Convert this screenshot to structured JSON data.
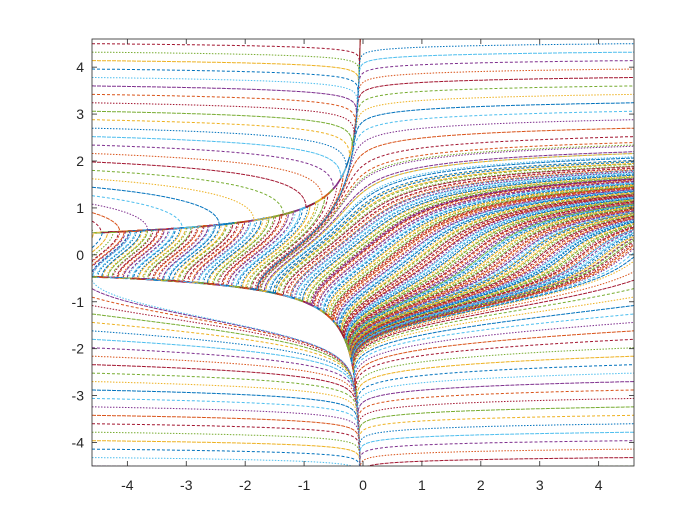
{
  "chart_data": {
    "type": "line",
    "title": "",
    "xlabel": "",
    "ylabel": "",
    "xlim": [
      -4.6,
      4.6
    ],
    "ylim": [
      -4.5,
      4.6
    ],
    "xticks": [
      -4,
      -3,
      -2,
      -1,
      0,
      1,
      2,
      3,
      4
    ],
    "yticks": [
      -4,
      -3,
      -2,
      -1,
      0,
      1,
      2,
      3,
      4
    ],
    "xtick_labels": [
      "-4",
      "-3",
      "-2",
      "-1",
      "0",
      "1",
      "2",
      "3",
      "4"
    ],
    "ytick_labels": [
      "-4",
      "-3",
      "-2",
      "-1",
      "0",
      "1",
      "2",
      "3",
      "4"
    ],
    "grid": false,
    "legend": "none",
    "series_colors": [
      "#0072bd",
      "#d95319",
      "#edb120",
      "#7e2f8e",
      "#77ac30",
      "#4dbeee",
      "#a2142f"
    ],
    "axis_color": "#262626",
    "background": "#ffffff"
  }
}
